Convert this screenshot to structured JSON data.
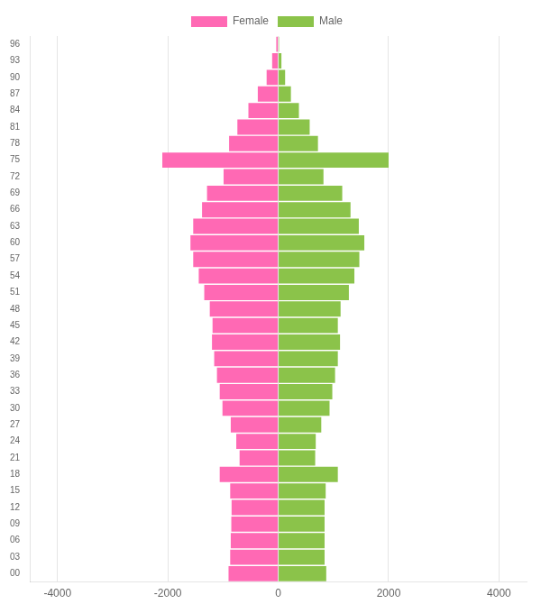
{
  "chart_data": {
    "type": "bar",
    "orientation": "horizontal",
    "stacked": true,
    "categories": [
      "00",
      "03",
      "06",
      "09",
      "12",
      "15",
      "18",
      "21",
      "24",
      "27",
      "30",
      "33",
      "36",
      "39",
      "42",
      "45",
      "48",
      "51",
      "54",
      "57",
      "60",
      "63",
      "66",
      "69",
      "72",
      "75",
      "78",
      "81",
      "84",
      "87",
      "90",
      "93",
      "96"
    ],
    "series": [
      {
        "name": "Female",
        "color": "#FF69B4",
        "values": [
          -900,
          -870,
          -860,
          -850,
          -845,
          -870,
          -1060,
          -700,
          -760,
          -860,
          -1010,
          -1060,
          -1110,
          -1160,
          -1200,
          -1190,
          -1240,
          -1340,
          -1440,
          -1540,
          -1590,
          -1540,
          -1380,
          -1290,
          -990,
          -2100,
          -890,
          -740,
          -540,
          -370,
          -210,
          -110,
          -35
        ]
      },
      {
        "name": "Male",
        "color": "#8BC34A",
        "values": [
          870,
          840,
          840,
          840,
          840,
          860,
          1080,
          670,
          680,
          780,
          930,
          980,
          1030,
          1080,
          1120,
          1080,
          1130,
          1280,
          1380,
          1470,
          1560,
          1460,
          1310,
          1160,
          820,
          2000,
          720,
          570,
          375,
          230,
          125,
          58,
          15
        ]
      }
    ],
    "xlim": [
      -4500,
      4500
    ],
    "xticks": [
      -4000,
      -2000,
      0,
      2000,
      4000
    ],
    "grid": true,
    "legend": "top"
  }
}
